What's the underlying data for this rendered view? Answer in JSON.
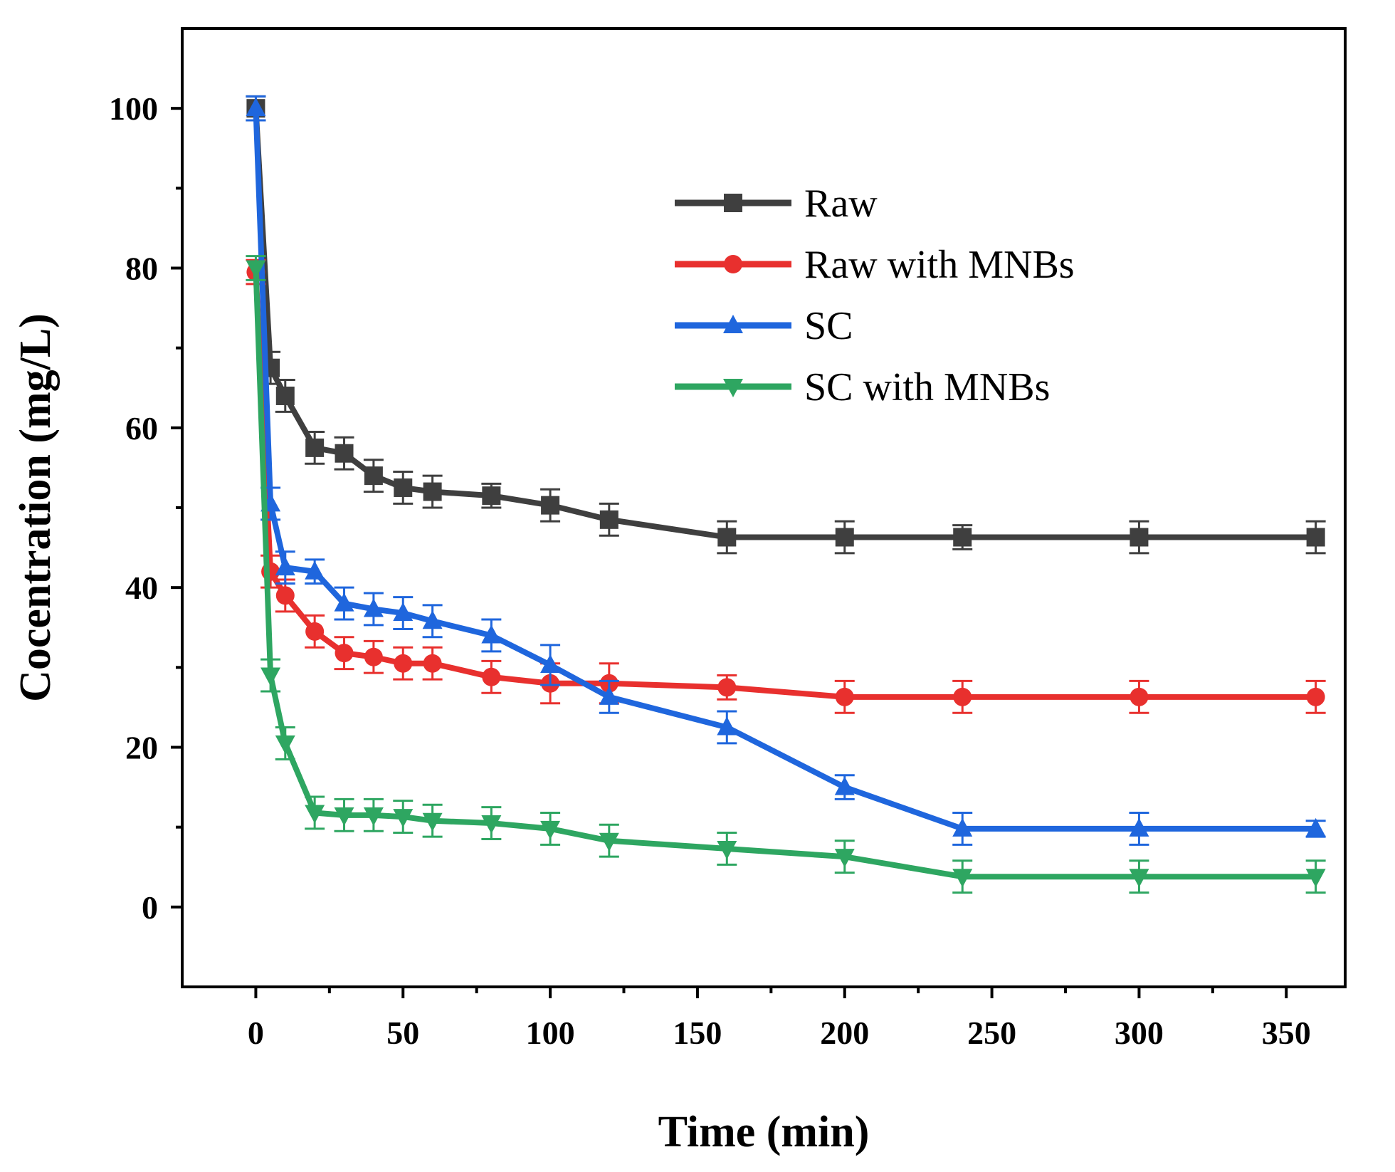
{
  "chart_data": {
    "type": "line",
    "title": "",
    "xlabel": "Time (min)",
    "ylabel": "Cocentration (mg/L)",
    "xlim": [
      -25,
      370
    ],
    "ylim": [
      -10,
      110
    ],
    "xticks": [
      0,
      50,
      100,
      150,
      200,
      250,
      300,
      350
    ],
    "yticks": [
      0,
      20,
      40,
      60,
      80,
      100
    ],
    "x": [
      0,
      5,
      10,
      20,
      30,
      40,
      50,
      60,
      80,
      100,
      120,
      160,
      200,
      240,
      300,
      360
    ],
    "legend_position": "top-right",
    "series": [
      {
        "name": "Raw",
        "color": "#3f3f3f",
        "marker": "square",
        "values": [
          100,
          67.5,
          64,
          57.5,
          56.8,
          54,
          52.5,
          52,
          51.5,
          50.3,
          48.5,
          46.3,
          46.3,
          46.3,
          46.3,
          46.3
        ],
        "errors": [
          1.5,
          2,
          2,
          2,
          2,
          2,
          2,
          2,
          1.5,
          2,
          2,
          2,
          2,
          1.5,
          2,
          2
        ]
      },
      {
        "name": "Raw with MNBs",
        "color": "#e8302e",
        "marker": "circle",
        "values": [
          79.5,
          42,
          39,
          34.5,
          31.8,
          31.3,
          30.5,
          30.5,
          28.8,
          28,
          28,
          27.5,
          26.3,
          26.3,
          26.3,
          26.3
        ],
        "errors": [
          1.5,
          2,
          2,
          2,
          2,
          2,
          2,
          2,
          2,
          2.5,
          2.5,
          1.5,
          2,
          2,
          2,
          2
        ]
      },
      {
        "name": "SC",
        "color": "#1f66dd",
        "marker": "triangle-up",
        "values": [
          100,
          50.5,
          42.5,
          42,
          38,
          37.3,
          36.8,
          35.8,
          34,
          30.3,
          26.3,
          22.5,
          15,
          9.8,
          9.8,
          9.8
        ],
        "errors": [
          1.5,
          2,
          2,
          1.5,
          2,
          2,
          2,
          2,
          2,
          2.5,
          2,
          2,
          1.5,
          2,
          2,
          1
        ]
      },
      {
        "name": "SC with MNBs",
        "color": "#2ea661",
        "marker": "triangle-down",
        "values": [
          80,
          29,
          20.5,
          11.8,
          11.5,
          11.5,
          11.3,
          10.8,
          10.5,
          9.8,
          8.3,
          7.3,
          6.3,
          3.8,
          3.8,
          3.8
        ],
        "errors": [
          1.5,
          2,
          2,
          2,
          2,
          2,
          2,
          2,
          2,
          2,
          2,
          2,
          2,
          2,
          2,
          2
        ]
      }
    ]
  }
}
